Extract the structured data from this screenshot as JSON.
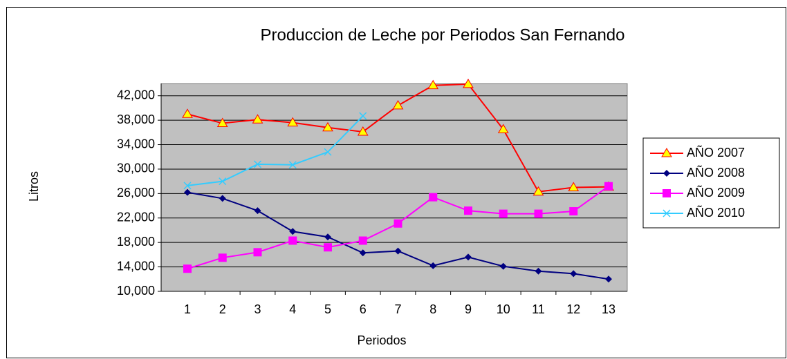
{
  "chart_data": {
    "type": "line",
    "title": "Produccion de Leche por Periodos San Fernando",
    "xlabel": "Periodos",
    "ylabel": "Litros",
    "categories": [
      "1",
      "2",
      "3",
      "4",
      "5",
      "6",
      "7",
      "8",
      "9",
      "10",
      "11",
      "12",
      "13"
    ],
    "series": [
      {
        "name": "AÑO 2007",
        "color": "#ff0000",
        "marker": "triangle",
        "values": [
          39000,
          37500,
          38100,
          37600,
          36800,
          36100,
          40400,
          43700,
          43900,
          36500,
          26300,
          27000,
          27100
        ]
      },
      {
        "name": "AÑO 2008",
        "color": "#000080",
        "marker": "diamond",
        "values": [
          26200,
          25200,
          23200,
          19800,
          18900,
          16300,
          16600,
          14200,
          15600,
          14100,
          13300,
          12900,
          12000
        ]
      },
      {
        "name": "AÑO 2009",
        "color": "#ff00ff",
        "marker": "square",
        "values": [
          13700,
          15500,
          16400,
          18300,
          17200,
          18300,
          21100,
          25400,
          23200,
          22700,
          22700,
          23100,
          27200
        ]
      },
      {
        "name": "AÑO 2010",
        "color": "#33ccff",
        "marker": "x",
        "values": [
          27300,
          28000,
          30800,
          30700,
          32800,
          38700,
          null,
          null,
          null,
          null,
          null,
          null,
          null
        ]
      }
    ],
    "ylim": [
      10000,
      44000
    ],
    "yticks": [
      {
        "value": 10000,
        "label": "10,000"
      },
      {
        "value": 14000,
        "label": "14,000"
      },
      {
        "value": 18000,
        "label": "18,000"
      },
      {
        "value": 22000,
        "label": "22,000"
      },
      {
        "value": 26000,
        "label": "26,000"
      },
      {
        "value": 30000,
        "label": "30,000"
      },
      {
        "value": 34000,
        "label": "34,000"
      },
      {
        "value": 38000,
        "label": "38,000"
      },
      {
        "value": 42000,
        "label": "42,000"
      }
    ],
    "grid": true,
    "legend": "right",
    "plot_background": "#c0c0c0"
  }
}
